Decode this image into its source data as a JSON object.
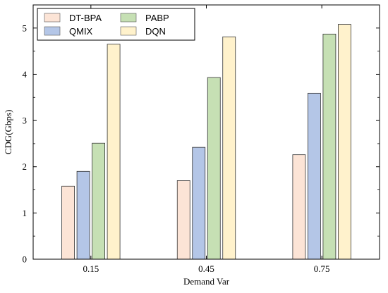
{
  "chart_data": {
    "type": "bar",
    "categories": [
      "0.15",
      "0.45",
      "0.75"
    ],
    "series": [
      {
        "name": "DT-BPA",
        "values": [
          1.58,
          1.7,
          2.26
        ],
        "color": "#fce4d6"
      },
      {
        "name": "QMIX",
        "values": [
          1.9,
          2.42,
          3.59
        ],
        "color": "#b4c6e7"
      },
      {
        "name": "PABP",
        "values": [
          2.51,
          3.93,
          4.87
        ],
        "color": "#c6e0b4"
      },
      {
        "name": "DQN",
        "values": [
          4.65,
          4.81,
          5.08
        ],
        "color": "#fff2cc"
      }
    ],
    "xlabel": "Demand Var",
    "ylabel": "CDG(Gbps)",
    "ylim": [
      0,
      5.5
    ],
    "yticks": [
      "0",
      "1",
      "2",
      "3",
      "4",
      "5"
    ],
    "grid": false,
    "legend_position": "top-left",
    "legend_columns": 2
  }
}
